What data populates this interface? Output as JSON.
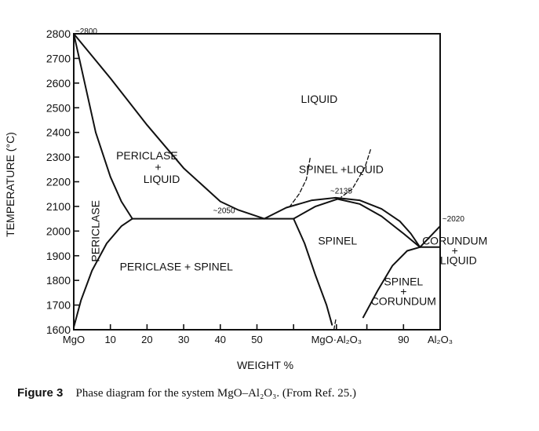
{
  "chart_data": {
    "type": "line",
    "title": "",
    "xlabel": "WEIGHT %",
    "ylabel": "TEMPERATURE (°C)",
    "xlim": [
      0,
      100
    ],
    "ylim": [
      1600,
      2800
    ],
    "y_ticks": [
      1600,
      1700,
      1800,
      1900,
      2000,
      2100,
      2200,
      2300,
      2400,
      2500,
      2600,
      2700,
      2800
    ],
    "y_tick_labels": [
      "1600",
      "1700",
      "1800",
      "1900",
      "2000",
      "2100",
      "2200",
      "2300",
      "2400",
      "2500",
      "2600",
      "2700",
      "2800"
    ],
    "x_ticks": [
      {
        "x": 0,
        "label": "MgO"
      },
      {
        "x": 10,
        "label": "10"
      },
      {
        "x": 20,
        "label": "20"
      },
      {
        "x": 30,
        "label": "30"
      },
      {
        "x": 40,
        "label": "40"
      },
      {
        "x": 50,
        "label": "50"
      },
      {
        "x": 60,
        "label": ""
      },
      {
        "x": 71.7,
        "label": "MgO·Al₂O₃"
      },
      {
        "x": 80,
        "label": ""
      },
      {
        "x": 90,
        "label": "90"
      },
      {
        "x": 100,
        "label": "Al₂O₃"
      }
    ],
    "grid": false,
    "series": [
      {
        "name": "",
        "style": "solid",
        "points": [
          [
            0,
            2800
          ],
          [
            10,
            2620
          ],
          [
            20,
            2430
          ],
          [
            30,
            2255
          ],
          [
            40,
            2120
          ],
          [
            45,
            2085
          ],
          [
            52,
            2050
          ]
        ]
      },
      {
        "name": "",
        "style": "solid",
        "points": [
          [
            0,
            2800
          ],
          [
            3,
            2600
          ],
          [
            6,
            2400
          ],
          [
            10,
            2220
          ],
          [
            13,
            2120
          ],
          [
            16,
            2050
          ]
        ]
      },
      {
        "name": "",
        "style": "solid",
        "points": [
          [
            0,
            1610
          ],
          [
            2,
            1720
          ],
          [
            5,
            1840
          ],
          [
            9,
            1950
          ],
          [
            13,
            2020
          ],
          [
            16,
            2050
          ]
        ]
      },
      {
        "name": "",
        "style": "solid",
        "points": [
          [
            16,
            2050
          ],
          [
            60,
            2050
          ]
        ]
      },
      {
        "name": "",
        "style": "solid",
        "points": [
          [
            52,
            2050
          ],
          [
            58,
            2095
          ],
          [
            65,
            2125
          ],
          [
            71.5,
            2135
          ],
          [
            78,
            2125
          ],
          [
            84,
            2090
          ],
          [
            89,
            2040
          ],
          [
            92,
            1990
          ],
          [
            94.5,
            1935
          ]
        ]
      },
      {
        "name": "",
        "style": "solid",
        "points": [
          [
            60,
            2050
          ],
          [
            63,
            1950
          ],
          [
            66,
            1820
          ],
          [
            69,
            1700
          ],
          [
            70.5,
            1620
          ]
        ]
      },
      {
        "name": "",
        "style": "solid",
        "points": [
          [
            60,
            2050
          ],
          [
            66,
            2100
          ],
          [
            72,
            2130
          ],
          [
            78,
            2110
          ],
          [
            84,
            2060
          ],
          [
            90,
            1990
          ],
          [
            94.5,
            1935
          ]
        ]
      },
      {
        "name": "",
        "style": "solid",
        "points": [
          [
            94.5,
            1935
          ],
          [
            100,
            1935
          ]
        ]
      },
      {
        "name": "",
        "style": "solid",
        "points": [
          [
            94.5,
            1935
          ],
          [
            100,
            2020
          ]
        ]
      },
      {
        "name": "",
        "style": "solid",
        "points": [
          [
            79,
            1650
          ],
          [
            83,
            1760
          ],
          [
            87,
            1860
          ],
          [
            91,
            1920
          ],
          [
            94.5,
            1935
          ]
        ]
      },
      {
        "name": "",
        "style": "dashed",
        "points": [
          [
            71,
            1600
          ],
          [
            71.5,
            1640
          ]
        ]
      },
      {
        "name": "",
        "style": "dashed",
        "points": [
          [
            81,
            2330
          ],
          [
            79.5,
            2260
          ],
          [
            76,
            2170
          ],
          [
            73,
            2138
          ]
        ]
      },
      {
        "name": "",
        "style": "dashed",
        "points": [
          [
            64.5,
            2295
          ],
          [
            63.5,
            2210
          ],
          [
            61.5,
            2150
          ],
          [
            59,
            2100
          ]
        ]
      }
    ],
    "annotations": [
      {
        "text": "~2800",
        "x": 0.4,
        "y": 2800
      },
      {
        "text": "~2050",
        "x": 38,
        "y": 2072
      },
      {
        "text": "~2135",
        "x": 70,
        "y": 2152
      },
      {
        "text": "~2020",
        "x": 100.6,
        "y": 2040
      },
      {
        "text": "LIQUID",
        "x": 67,
        "y": 2520
      },
      {
        "text": "PERICLASE",
        "x": 20,
        "y": 2290
      },
      {
        "text": "+",
        "x": 23,
        "y": 2245
      },
      {
        "text": "LIQUID",
        "x": 24,
        "y": 2195
      },
      {
        "text": "PERICLASE",
        "x": 7,
        "y": 2000,
        "rotate": -90
      },
      {
        "text": "SPINEL +LIQUID",
        "x": 73,
        "y": 2235
      },
      {
        "text": "SPINEL",
        "x": 72,
        "y": 1945
      },
      {
        "text": "PERICLASE + SPINEL",
        "x": 28,
        "y": 1840
      },
      {
        "text": "CORUNDUM",
        "x": 104,
        "y": 1945
      },
      {
        "text": "+",
        "x": 104,
        "y": 1905
      },
      {
        "text": "LIQUID",
        "x": 105,
        "y": 1865
      },
      {
        "text": "SPINEL",
        "x": 90,
        "y": 1780
      },
      {
        "text": "+",
        "x": 90,
        "y": 1740
      },
      {
        "text": "CORUNDUM",
        "x": 90,
        "y": 1700
      }
    ]
  },
  "caption": {
    "label": "Figure 3",
    "text": "Phase diagram for the system MgO–Al₂O₃. (From Ref. 25.)"
  }
}
